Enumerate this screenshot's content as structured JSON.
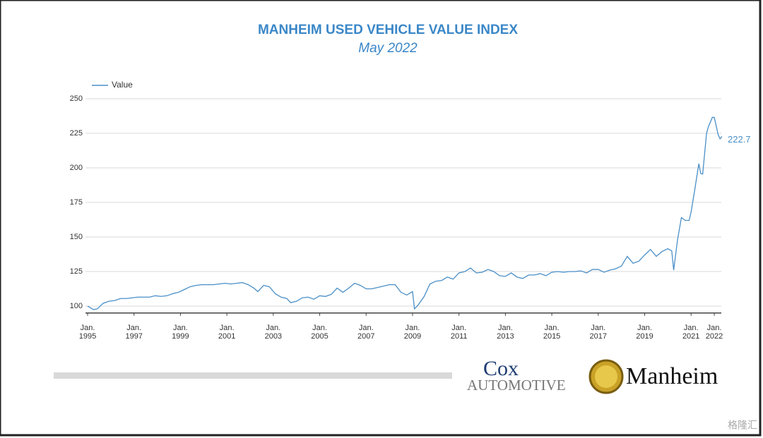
{
  "chart_data": {
    "type": "line",
    "title": "MANHEIM USED VEHICLE VALUE INDEX",
    "subtitle": "May 2022",
    "legend": "top-left",
    "grid": true,
    "xlim": [
      "1995-01",
      "2022-05"
    ],
    "ylim": [
      95,
      250
    ],
    "yticks": [
      100,
      125,
      150,
      175,
      200,
      225,
      250
    ],
    "xticks": [
      {
        "value": "1995-01",
        "label": "Jan. 1995"
      },
      {
        "value": "1997-01",
        "label": "Jan. 1997"
      },
      {
        "value": "1999-01",
        "label": "Jan. 1999"
      },
      {
        "value": "2001-01",
        "label": "Jan. 2001"
      },
      {
        "value": "2003-01",
        "label": "Jan. 2003"
      },
      {
        "value": "2005-01",
        "label": "Jan. 2005"
      },
      {
        "value": "2007-01",
        "label": "Jan. 2007"
      },
      {
        "value": "2009-01",
        "label": "Jan. 2009"
      },
      {
        "value": "2011-01",
        "label": "Jan. 2011"
      },
      {
        "value": "2013-01",
        "label": "Jan. 2013"
      },
      {
        "value": "2015-01",
        "label": "Jan. 2015"
      },
      {
        "value": "2017-01",
        "label": "Jan. 2017"
      },
      {
        "value": "2019-01",
        "label": "Jan. 2019"
      },
      {
        "value": "2021-01",
        "label": "Jan. 2021"
      },
      {
        "value": "2022-01",
        "label": "Jan. 2022"
      }
    ],
    "x": [
      "1995-01",
      "1995-04",
      "1995-06",
      "1995-09",
      "1995-12",
      "1996-03",
      "1996-06",
      "1996-09",
      "1996-12",
      "1997-03",
      "1997-06",
      "1997-09",
      "1997-12",
      "1998-03",
      "1998-06",
      "1998-09",
      "1998-12",
      "1999-03",
      "1999-06",
      "1999-09",
      "1999-12",
      "2000-03",
      "2000-06",
      "2000-09",
      "2000-12",
      "2001-03",
      "2001-06",
      "2001-09",
      "2001-12",
      "2002-03",
      "2002-05",
      "2002-08",
      "2002-11",
      "2003-02",
      "2003-05",
      "2003-08",
      "2003-10",
      "2004-01",
      "2004-04",
      "2004-07",
      "2004-10",
      "2005-01",
      "2005-04",
      "2005-07",
      "2005-10",
      "2006-01",
      "2006-04",
      "2006-07",
      "2006-10",
      "2007-01",
      "2007-04",
      "2007-07",
      "2007-10",
      "2008-01",
      "2008-04",
      "2008-07",
      "2008-10",
      "2009-01",
      "2009-02",
      "2009-04",
      "2009-07",
      "2009-10",
      "2010-01",
      "2010-04",
      "2010-07",
      "2010-10",
      "2011-01",
      "2011-04",
      "2011-07",
      "2011-10",
      "2012-01",
      "2012-04",
      "2012-07",
      "2012-10",
      "2013-01",
      "2013-04",
      "2013-07",
      "2013-10",
      "2014-01",
      "2014-04",
      "2014-07",
      "2014-10",
      "2015-01",
      "2015-04",
      "2015-07",
      "2015-10",
      "2016-01",
      "2016-04",
      "2016-07",
      "2016-10",
      "2017-01",
      "2017-04",
      "2017-07",
      "2017-10",
      "2018-01",
      "2018-04",
      "2018-07",
      "2018-10",
      "2019-01",
      "2019-04",
      "2019-07",
      "2019-10",
      "2020-01",
      "2020-03",
      "2020-04",
      "2020-06",
      "2020-08",
      "2020-10",
      "2020-12",
      "2021-01",
      "2021-03",
      "2021-05",
      "2021-06",
      "2021-07",
      "2021-09",
      "2021-10",
      "2021-12",
      "2022-01",
      "2022-03",
      "2022-04",
      "2022-05"
    ],
    "series": [
      {
        "name": "Value",
        "color": "#4a8fc7",
        "values": [
          100,
          97.5,
          98,
          102,
          103.5,
          104,
          105.5,
          105.5,
          106,
          106.5,
          106.5,
          106.5,
          107.5,
          107,
          107.5,
          109,
          110,
          112,
          114,
          115,
          115.5,
          115.5,
          115.5,
          116,
          116.5,
          116,
          116.5,
          117,
          115.5,
          113,
          110.5,
          115,
          114,
          109,
          106.5,
          105.5,
          102.5,
          103.5,
          106,
          106.5,
          105,
          107.5,
          107,
          108.5,
          113,
          110,
          113,
          116.5,
          115,
          112.5,
          112.5,
          113.5,
          114.5,
          115.5,
          115.5,
          110,
          108,
          110.5,
          98,
          101,
          107,
          116,
          118,
          118.5,
          121,
          119.5,
          124,
          125,
          127.5,
          124,
          124.5,
          126.5,
          125,
          122,
          121.5,
          124,
          121,
          120,
          122.5,
          122.5,
          123.5,
          122,
          124.5,
          125,
          124.5,
          125,
          125,
          125.5,
          124,
          126.5,
          126.5,
          124.5,
          126,
          127,
          129,
          136,
          131,
          132.5,
          137,
          141,
          136,
          139.5,
          141.5,
          140,
          126,
          148,
          164,
          162,
          162,
          168,
          185,
          203,
          196,
          195.5,
          225,
          230,
          236.5,
          236.5,
          224,
          221,
          222.7
        ]
      }
    ],
    "annotations": [
      {
        "text": "222.7",
        "x": "2022-05",
        "y": 222.7
      }
    ],
    "logos": [
      "Cox",
      "Automotive",
      "Manheim"
    ],
    "watermark": "格隆汇"
  }
}
